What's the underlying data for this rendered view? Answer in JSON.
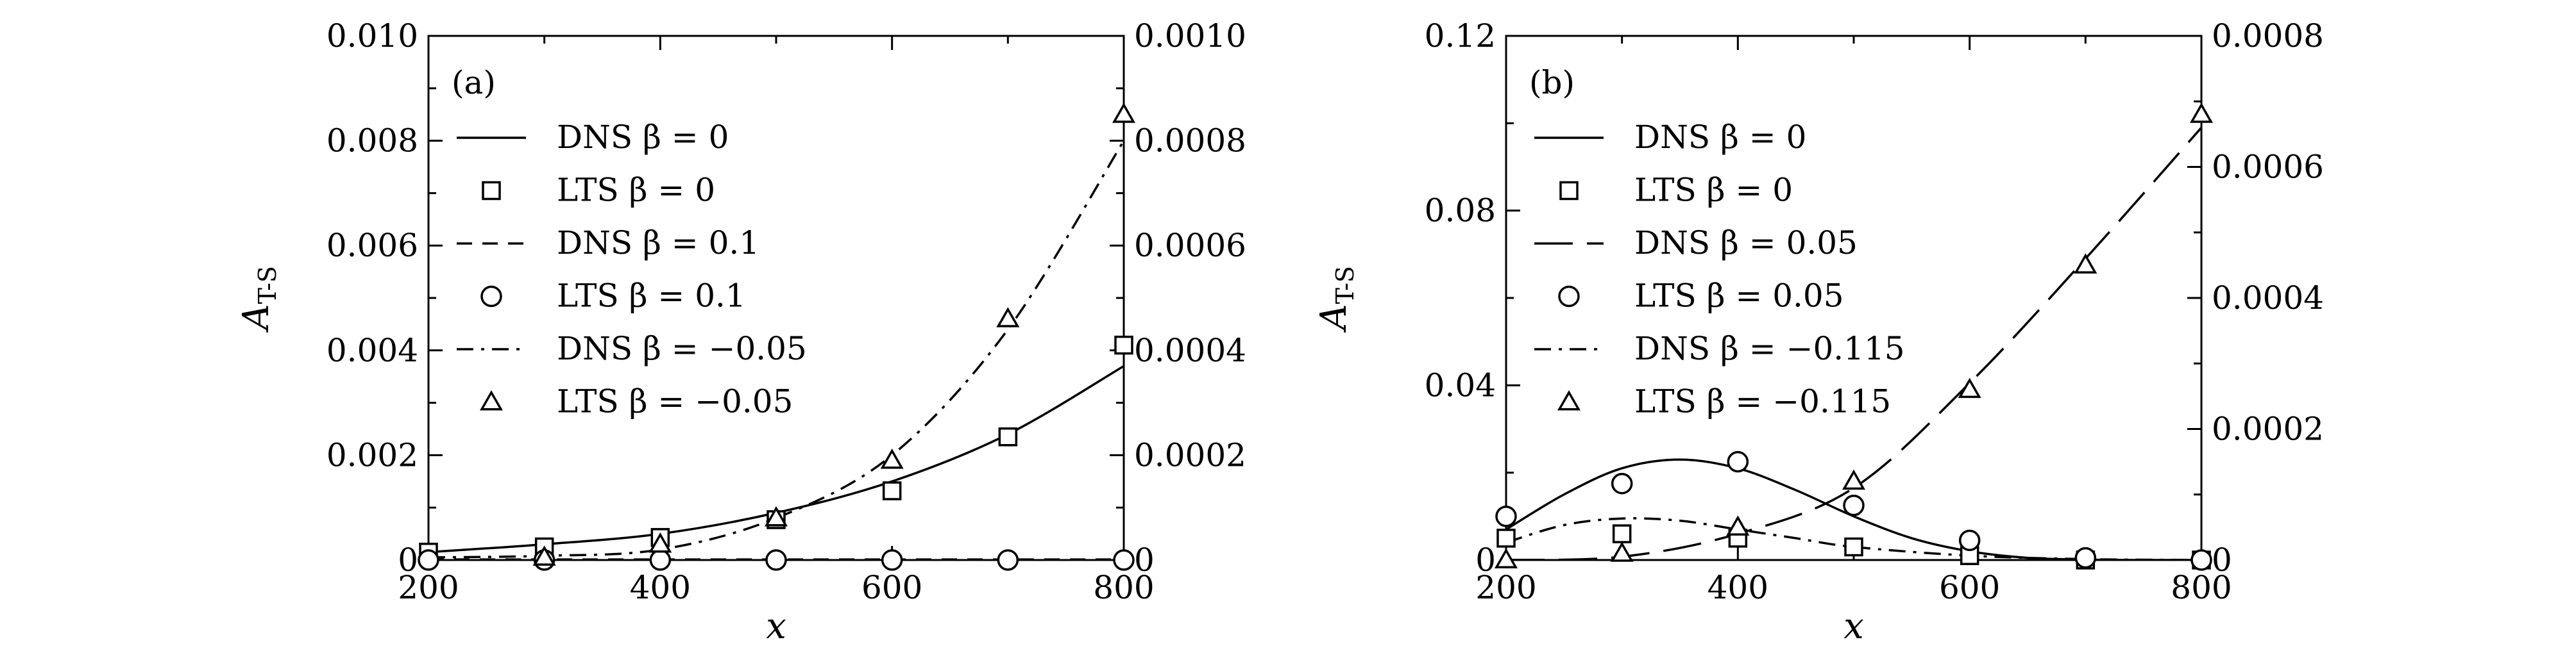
{
  "chart_data": [
    {
      "type": "line",
      "panel_label": "(a)",
      "xlabel": "x",
      "ylabel_main": "A",
      "ylabel_sub": "T-S",
      "xlim": [
        200,
        800
      ],
      "ylim_left": [
        0,
        0.01
      ],
      "ylim_right": [
        0,
        0.001
      ],
      "x_ticks": [
        "200",
        "400",
        "600",
        "800"
      ],
      "y_ticks_left": [
        "0",
        "0.002",
        "0.004",
        "0.006",
        "0.008",
        "0.010"
      ],
      "y_ticks_right": [
        "0",
        "0.0002",
        "0.0004",
        "0.0006",
        "0.0008",
        "0.0010"
      ],
      "legend_placement": "top-left",
      "series": [
        {
          "name": "DNS β = 0",
          "kind": "line",
          "dash": "solid",
          "axis": "left",
          "x": [
            200,
            300,
            400,
            500,
            600,
            700,
            800
          ],
          "y": [
            0.00015,
            0.0003,
            0.0005,
            0.0009,
            0.0015,
            0.0024,
            0.0037
          ]
        },
        {
          "name": "LTS β = 0",
          "kind": "marker",
          "marker": "square",
          "axis": "left",
          "x": [
            200,
            300,
            400,
            500,
            600,
            700,
            800
          ],
          "y": [
            0.00015,
            0.00025,
            0.00043,
            0.00077,
            0.00132,
            0.00235,
            0.0041
          ]
        },
        {
          "name": "DNS β = 0.1",
          "kind": "line",
          "dash": "dashed",
          "axis": "left",
          "x": [
            200,
            300,
            400,
            500,
            600,
            700,
            800
          ],
          "y": [
            1e-05,
            1e-05,
            1e-05,
            1e-05,
            1e-05,
            1e-05,
            1e-05
          ]
        },
        {
          "name": "LTS β = 0.1",
          "kind": "marker",
          "marker": "circle",
          "axis": "left",
          "x": [
            200,
            300,
            400,
            500,
            600,
            700,
            800
          ],
          "y": [
            0,
            0,
            0,
            0,
            0,
            0,
            0
          ]
        },
        {
          "name": "DNS β = −0.05",
          "kind": "line",
          "dash": "dashdot",
          "axis": "right",
          "x": [
            200,
            300,
            400,
            500,
            600,
            700,
            800
          ],
          "y": [
            5e-06,
            8e-06,
            2e-05,
            8e-05,
            0.0002,
            0.00044,
            0.0008
          ]
        },
        {
          "name": "LTS β = −0.05",
          "kind": "marker",
          "marker": "triangle",
          "axis": "right",
          "x": [
            300,
            400,
            500,
            600,
            700,
            800
          ],
          "y": [
            5e-06,
            3e-05,
            8e-05,
            0.00019,
            0.00046,
            0.00085
          ]
        }
      ]
    },
    {
      "type": "line",
      "panel_label": "(b)",
      "xlabel": "x",
      "ylabel_main": "A",
      "ylabel_sub": "T-S",
      "xlim": [
        200,
        800
      ],
      "ylim_left": [
        0,
        0.12
      ],
      "ylim_right": [
        0,
        0.0008
      ],
      "x_ticks": [
        "200",
        "400",
        "600",
        "800"
      ],
      "y_ticks_left": [
        "0",
        "0.04",
        "0.08",
        "0.12"
      ],
      "y_ticks_right": [
        "0",
        "0.0002",
        "0.0004",
        "0.0006",
        "0.0008"
      ],
      "legend_placement": "top-left",
      "series": [
        {
          "name": "DNS β = 0",
          "kind": "line",
          "dash": "solid",
          "axis": "left",
          "x": [
            200,
            250,
            300,
            350,
            400,
            450,
            500,
            550,
            600,
            650,
            700,
            750,
            800
          ],
          "y": [
            0.007,
            0.015,
            0.021,
            0.023,
            0.021,
            0.016,
            0.01,
            0.005,
            0.002,
            0.0005,
            0.0001,
            0,
            0
          ]
        },
        {
          "name": "LTS β = 0",
          "kind": "marker",
          "marker": "square",
          "axis": "left",
          "x": [
            200,
            300,
            400,
            500,
            600,
            700,
            800
          ],
          "y": [
            0.005,
            0.006,
            0.005,
            0.003,
            0.001,
            0,
            0
          ]
        },
        {
          "name": "DNS β = 0.05",
          "kind": "line",
          "dash": "longdash",
          "axis": "right",
          "x": [
            200,
            300,
            400,
            500,
            600,
            700,
            800
          ],
          "y": [
            0,
            5e-06,
            4e-05,
            0.00011,
            0.00027,
            0.00046,
            0.00066
          ]
        },
        {
          "name": "LTS β = 0.05",
          "kind": "marker",
          "marker": "circle",
          "axis": "left",
          "x": [
            200,
            300,
            400,
            500,
            600,
            700,
            800
          ],
          "y": [
            0.01,
            0.0175,
            0.0225,
            0.0125,
            0.0045,
            0.0005,
            0
          ]
        },
        {
          "name": "DNS β = −0.115",
          "kind": "line",
          "dash": "dashdot",
          "axis": "left",
          "x": [
            200,
            250,
            300,
            350,
            400,
            450,
            500,
            600,
            700,
            800
          ],
          "y": [
            0.004,
            0.008,
            0.0095,
            0.009,
            0.007,
            0.005,
            0.003,
            0.001,
            0.0002,
            0
          ]
        },
        {
          "name": "LTS β = −0.115",
          "kind": "marker",
          "marker": "triangle",
          "axis": "right",
          "x": [
            200,
            300,
            400,
            500,
            600,
            700,
            800
          ],
          "y": [
            0,
            1e-05,
            5e-05,
            0.00012,
            0.00026,
            0.00045,
            0.00068
          ]
        }
      ]
    }
  ]
}
